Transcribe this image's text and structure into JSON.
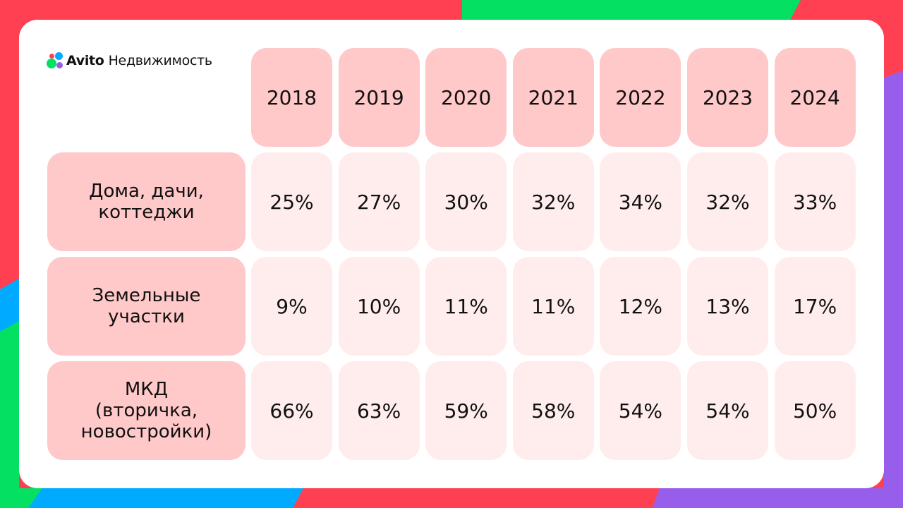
{
  "brand": {
    "name": "Avito",
    "product": "Недвижимость",
    "dot_colors": [
      "#00aaff",
      "#04e061",
      "#965eeb",
      "#ff4053"
    ]
  },
  "background_colors": {
    "red": "#ff4053",
    "green": "#04e061",
    "blue": "#00aaff",
    "violet": "#965eeb"
  },
  "chart_data": {
    "type": "table",
    "columns": [
      "2018",
      "2019",
      "2020",
      "2021",
      "2022",
      "2023",
      "2024"
    ],
    "rows": [
      {
        "label": "Дома, дачи,\nкоттеджи",
        "values": [
          "25%",
          "27%",
          "30%",
          "32%",
          "34%",
          "32%",
          "33%"
        ]
      },
      {
        "label": "Земельные\nучастки",
        "values": [
          "9%",
          "10%",
          "11%",
          "11%",
          "12%",
          "13%",
          "17%"
        ]
      },
      {
        "label": "МКД\n(вторичка,\nновостройки)",
        "values": [
          "66%",
          "63%",
          "59%",
          "58%",
          "54%",
          "54%",
          "50%"
        ]
      }
    ]
  }
}
